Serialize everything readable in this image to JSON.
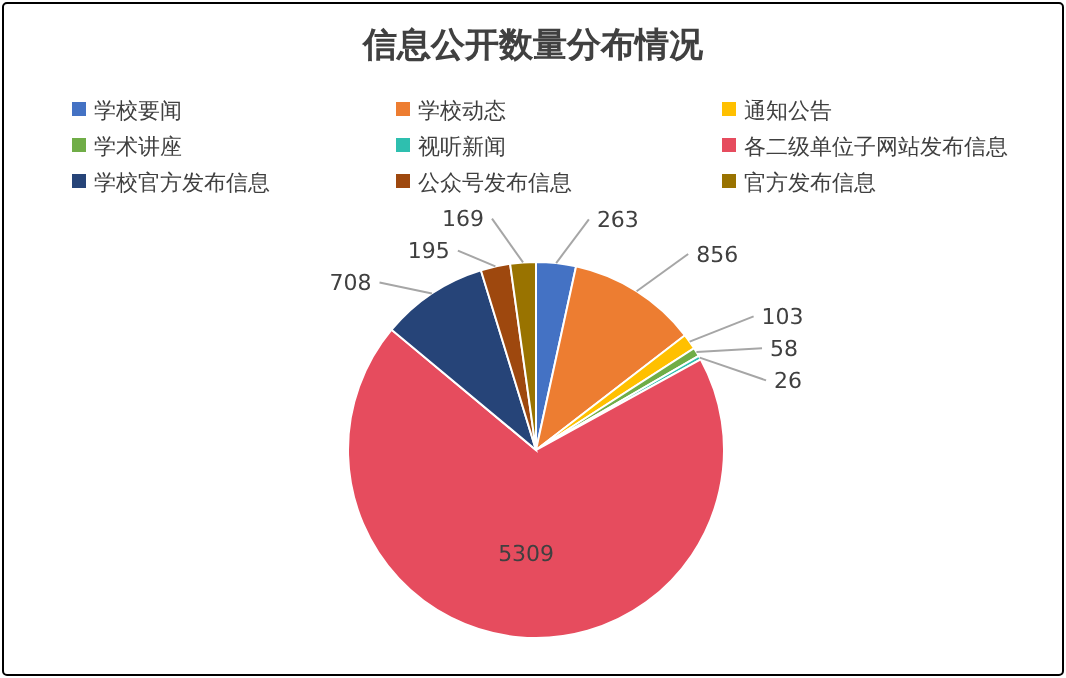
{
  "chart_data": {
    "type": "pie",
    "title": "信息公开数量分布情况",
    "categories": [
      "学校要闻",
      "学校动态",
      "通知公告",
      "学术讲座",
      "视听新闻",
      "各二级单位子网站发布信息",
      "学校官方发布信息",
      "公众号发布信息",
      "官方发布信息"
    ],
    "values": [
      263,
      856,
      103,
      58,
      26,
      5309,
      708,
      195,
      169
    ],
    "colors": [
      "#4472c4",
      "#ed7d31",
      "#ffc000",
      "#70ad47",
      "#2ebfaf",
      "#e64c5e",
      "#264478",
      "#9e480e",
      "#997300"
    ],
    "data_labels": true,
    "legend": "top"
  }
}
